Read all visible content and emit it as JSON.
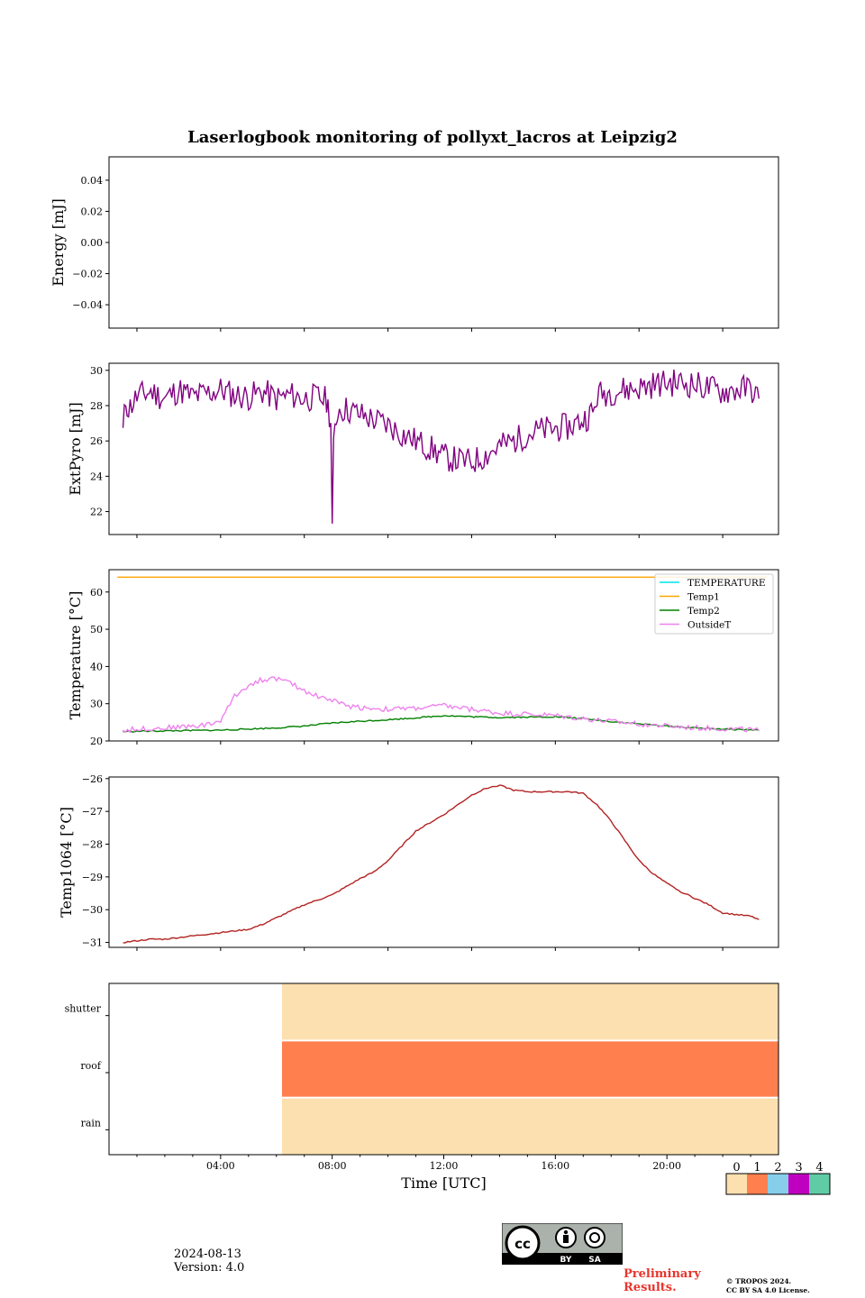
{
  "title": "Laserlogbook monitoring of pollyxt_lacros at Leipzig2",
  "date": "2024-08-13",
  "version": "Version: 4.0",
  "footer": {
    "preliminary_line1": "Preliminary",
    "preliminary_line2": "Results.",
    "copyright_line1": "© TROPOS 2024.",
    "copyright_line2": "CC BY SA 4.0 License.",
    "cc_by": "BY",
    "cc_sa": "SA"
  },
  "colors": {
    "extpyro": "#800080",
    "temperature": "#00e5ee",
    "temp1": "#ffa500",
    "temp2": "#008000",
    "outsideT": "#ee82ee",
    "temp1064": "#b22222",
    "status_0": "#fde0af",
    "status_1": "#ff7f4f",
    "status_2": "#87ceeb",
    "status_3": "#c000c0",
    "status_4": "#5fcca5"
  },
  "chart_data": [
    {
      "type": "line",
      "id": "energy",
      "ylabel": "Energy [mJ]",
      "ylim": [
        -0.055,
        0.055
      ],
      "yticks": [
        0.04,
        0.02,
        0.0,
        -0.02,
        -0.04
      ],
      "ytick_labels": [
        "0.04",
        "0.02",
        "0.00",
        "−0.02",
        "−0.04"
      ],
      "series": []
    },
    {
      "type": "line",
      "id": "extpyro",
      "ylabel": "ExtPyro [mJ]",
      "ylim": [
        20.7,
        30.4
      ],
      "yticks": [
        22,
        24,
        26,
        28,
        30
      ],
      "ytick_labels": [
        "22",
        "24",
        "26",
        "28",
        "30"
      ],
      "x": [
        0.5,
        0.6,
        0.7,
        1,
        1.5,
        2,
        2.5,
        3,
        3.5,
        4,
        4.5,
        5,
        5.5,
        6,
        6.5,
        7,
        7.5,
        7.8,
        7.95,
        8.0,
        8.05,
        8.1,
        8.2,
        8.5,
        9,
        9.5,
        10,
        10.5,
        11,
        11.5,
        12,
        12.5,
        13,
        13.5,
        14,
        14.5,
        15,
        15.5,
        16,
        16.5,
        17,
        17.4,
        17.5,
        18,
        18.5,
        19,
        19.5,
        20,
        20.5,
        21,
        21.5,
        22,
        22.5,
        23,
        23.3
      ],
      "values": [
        26.5,
        28.3,
        27.8,
        28.5,
        28.8,
        28.4,
        28.9,
        28.5,
        28.7,
        28.9,
        28.6,
        28.5,
        28.8,
        28.4,
        28.6,
        28.4,
        28.5,
        28.3,
        27.2,
        21.1,
        25.5,
        26.6,
        27.8,
        27.8,
        27.5,
        27.2,
        26.9,
        26.4,
        26.0,
        25.6,
        25.1,
        24.9,
        24.8,
        25.2,
        25.7,
        26.0,
        26.4,
        26.6,
        26.7,
        26.8,
        27.2,
        27.7,
        28.6,
        28.8,
        28.9,
        29.0,
        29.2,
        29.3,
        29.3,
        29.2,
        29.0,
        28.8,
        28.9,
        29.0,
        28.4
      ],
      "series": [
        {
          "name": "ExtPyro",
          "color_key": "extpyro"
        }
      ]
    },
    {
      "type": "line",
      "id": "temperature",
      "ylabel": "Temperature [°C]",
      "ylim": [
        20,
        66
      ],
      "yticks": [
        20,
        30,
        40,
        50,
        60
      ],
      "ytick_labels": [
        "20",
        "30",
        "40",
        "50",
        "60"
      ],
      "legend_position": "top-right",
      "series": [
        {
          "name": "TEMPERATURE",
          "color_key": "temperature",
          "x": [],
          "values": []
        },
        {
          "name": "Temp1",
          "color_key": "temp1",
          "x": [
            0.3,
            23.6
          ],
          "values": [
            64,
            64
          ]
        },
        {
          "name": "Temp2",
          "color_key": "temp2",
          "x": [
            0.5,
            1,
            2,
            3,
            4,
            5,
            6,
            7,
            8,
            9,
            10,
            11,
            12,
            13,
            14,
            15,
            16,
            17,
            18,
            19,
            20,
            21,
            22,
            23,
            23.3
          ],
          "values": [
            22.5,
            22.6,
            22.7,
            22.8,
            22.9,
            23.2,
            23.5,
            24.0,
            24.8,
            25.3,
            25.7,
            26.2,
            26.8,
            26.5,
            26.3,
            26.4,
            26.5,
            26.0,
            25.2,
            24.6,
            24.0,
            23.5,
            23.2,
            23.0,
            22.9
          ]
        },
        {
          "name": "OutsideT",
          "color_key": "outsideT",
          "x": [
            0.5,
            1,
            2,
            3,
            3.5,
            4,
            4.5,
            5,
            5.5,
            6,
            6.5,
            7,
            7.5,
            8,
            8.5,
            9,
            10,
            11,
            12,
            13,
            14,
            15,
            16,
            17,
            18,
            19,
            20,
            21,
            22,
            23,
            23.3
          ],
          "values": [
            22.8,
            23.2,
            23.5,
            24.0,
            24.3,
            25.5,
            32.0,
            35.0,
            36.5,
            36.8,
            35.5,
            33.5,
            32.0,
            31.0,
            29.5,
            29.0,
            28.5,
            28.8,
            29.5,
            28.5,
            27.5,
            27.2,
            26.8,
            26.0,
            25.2,
            24.6,
            24.0,
            23.5,
            23.3,
            23.0,
            22.8
          ]
        }
      ]
    },
    {
      "type": "line",
      "id": "temp1064",
      "ylabel": "Temp1064 [°C]",
      "ylim": [
        -31.15,
        -25.95
      ],
      "yticks": [
        -26,
        -27,
        -28,
        -29,
        -30,
        -31
      ],
      "ytick_labels": [
        "−26",
        "−27",
        "−28",
        "−29",
        "−30",
        "−31"
      ],
      "x": [
        0.5,
        1,
        1.5,
        2,
        2.5,
        3,
        3.5,
        4,
        4.5,
        5,
        5.5,
        6,
        6.5,
        7,
        7.5,
        8,
        8.5,
        9,
        9.5,
        10,
        10.5,
        11,
        11.5,
        12,
        12.5,
        13,
        13.5,
        14,
        14.5,
        15,
        15.5,
        16,
        16.5,
        17,
        17.5,
        18,
        18.5,
        19,
        19.5,
        20,
        20.5,
        21,
        21.5,
        22,
        22.5,
        23,
        23.3
      ],
      "values": [
        -31.0,
        -30.95,
        -30.9,
        -30.9,
        -30.85,
        -30.8,
        -30.75,
        -30.7,
        -30.65,
        -30.6,
        -30.45,
        -30.25,
        -30.05,
        -29.85,
        -29.7,
        -29.55,
        -29.3,
        -29.05,
        -28.85,
        -28.5,
        -28.05,
        -27.6,
        -27.35,
        -27.1,
        -26.8,
        -26.5,
        -26.3,
        -26.2,
        -26.35,
        -26.4,
        -26.4,
        -26.4,
        -26.4,
        -26.45,
        -26.8,
        -27.3,
        -27.9,
        -28.5,
        -28.9,
        -29.2,
        -29.45,
        -29.65,
        -29.85,
        -30.1,
        -30.15,
        -30.2,
        -30.3
      ],
      "series": [
        {
          "name": "Temp1064",
          "color_key": "temp1064"
        }
      ]
    },
    {
      "type": "heatmap",
      "id": "status",
      "xlabel": "Time [UTC]",
      "xlim": [
        0,
        24
      ],
      "xtick_labels": [
        "04:00",
        "08:00",
        "12:00",
        "16:00",
        "20:00"
      ],
      "xticks": [
        4,
        8,
        12,
        16,
        20
      ],
      "rows": [
        "shutter",
        "roof",
        "rain"
      ],
      "data_start": 6.2,
      "values": [
        0,
        1,
        0
      ],
      "colorbar_labels": [
        "0",
        "1",
        "2",
        "3",
        "4"
      ]
    }
  ]
}
